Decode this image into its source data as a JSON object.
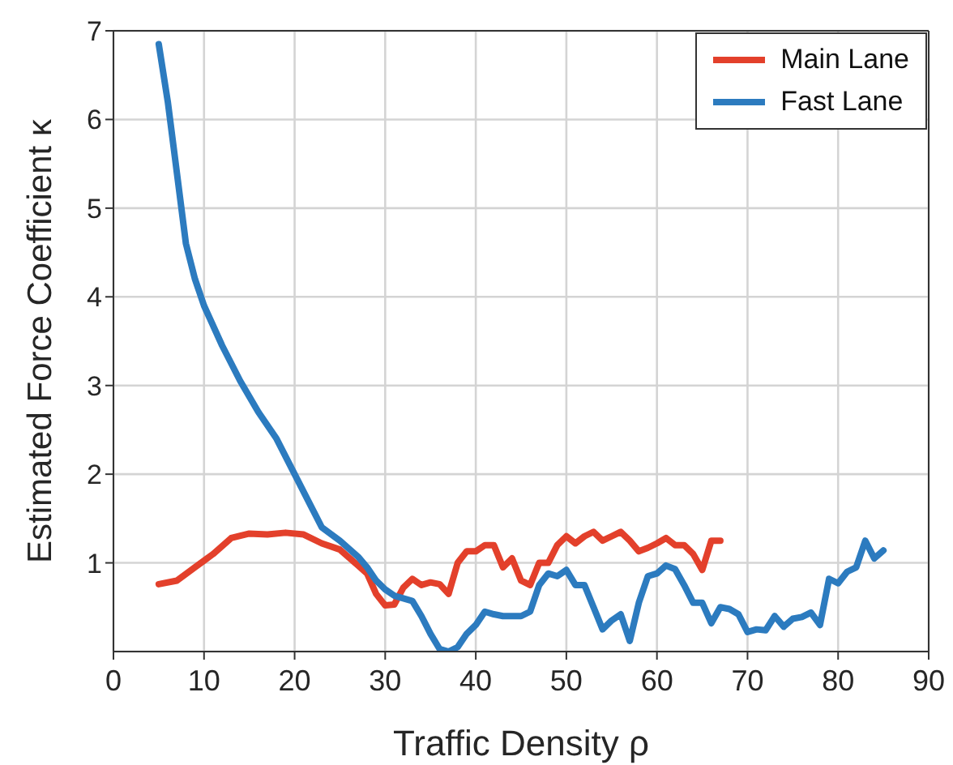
{
  "chart_data": {
    "type": "line",
    "xlabel": "Traffic Density ρ",
    "ylabel": "Estimated Force Coefficient κ",
    "xlim": [
      0,
      90
    ],
    "xticks": [
      0,
      10,
      20,
      30,
      40,
      50,
      60,
      70,
      80,
      90
    ],
    "ylim": [
      0,
      7
    ],
    "yticks": [
      1,
      2,
      3,
      4,
      5,
      6,
      7
    ],
    "grid": true,
    "legend": "top right",
    "line_style": "solid",
    "marker": "none",
    "series": [
      {
        "name": "Main Lane",
        "color": "#e3402b",
        "x": [
          5,
          7,
          9,
          11,
          13,
          15,
          17,
          19,
          21,
          23,
          25,
          27,
          28,
          29,
          30,
          31,
          32,
          33,
          34,
          35,
          36,
          37,
          38,
          39,
          40,
          41,
          42,
          43,
          44,
          45,
          46,
          47,
          48,
          49,
          50,
          51,
          52,
          53,
          54,
          55,
          56,
          57,
          58,
          59,
          60,
          61,
          62,
          63,
          64,
          65,
          66,
          67
        ],
        "values": [
          0.76,
          0.8,
          0.95,
          1.1,
          1.28,
          1.33,
          1.32,
          1.34,
          1.32,
          1.22,
          1.15,
          0.97,
          0.88,
          0.65,
          0.52,
          0.53,
          0.72,
          0.82,
          0.75,
          0.78,
          0.76,
          0.65,
          1.0,
          1.13,
          1.13,
          1.2,
          1.2,
          0.95,
          1.05,
          0.8,
          0.75,
          1.0,
          1.0,
          1.2,
          1.3,
          1.22,
          1.3,
          1.35,
          1.25,
          1.3,
          1.35,
          1.25,
          1.13,
          1.17,
          1.22,
          1.28,
          1.2,
          1.2,
          1.1,
          0.92,
          1.25,
          1.25
        ]
      },
      {
        "name": "Fast Lane",
        "color": "#2c7bbf",
        "x": [
          5,
          6,
          7,
          8,
          9,
          10,
          12,
          14,
          16,
          18,
          20,
          22,
          23,
          25,
          27,
          28,
          29,
          30,
          31,
          32,
          33,
          34,
          35,
          36,
          37,
          38,
          39,
          40,
          41,
          42,
          43,
          44,
          45,
          46,
          47,
          48,
          49,
          50,
          51,
          52,
          53,
          54,
          55,
          56,
          57,
          58,
          59,
          60,
          61,
          62,
          63,
          64,
          65,
          66,
          67,
          68,
          69,
          70,
          71,
          72,
          73,
          74,
          75,
          76,
          77,
          78,
          79,
          80,
          81,
          82,
          83,
          84,
          85
        ],
        "values": [
          6.85,
          6.2,
          5.4,
          4.6,
          4.2,
          3.9,
          3.45,
          3.05,
          2.7,
          2.4,
          2.0,
          1.6,
          1.4,
          1.25,
          1.07,
          0.95,
          0.8,
          0.7,
          0.63,
          0.6,
          0.57,
          0.4,
          0.2,
          0.03,
          0.0,
          0.05,
          0.2,
          0.3,
          0.45,
          0.42,
          0.4,
          0.4,
          0.4,
          0.45,
          0.75,
          0.88,
          0.85,
          0.92,
          0.75,
          0.75,
          0.5,
          0.25,
          0.35,
          0.42,
          0.12,
          0.55,
          0.85,
          0.88,
          0.97,
          0.93,
          0.75,
          0.55,
          0.55,
          0.32,
          0.5,
          0.48,
          0.42,
          0.22,
          0.25,
          0.24,
          0.4,
          0.28,
          0.37,
          0.39,
          0.44,
          0.3,
          0.82,
          0.77,
          0.9,
          0.95,
          1.25,
          1.05,
          1.14
        ]
      }
    ]
  }
}
